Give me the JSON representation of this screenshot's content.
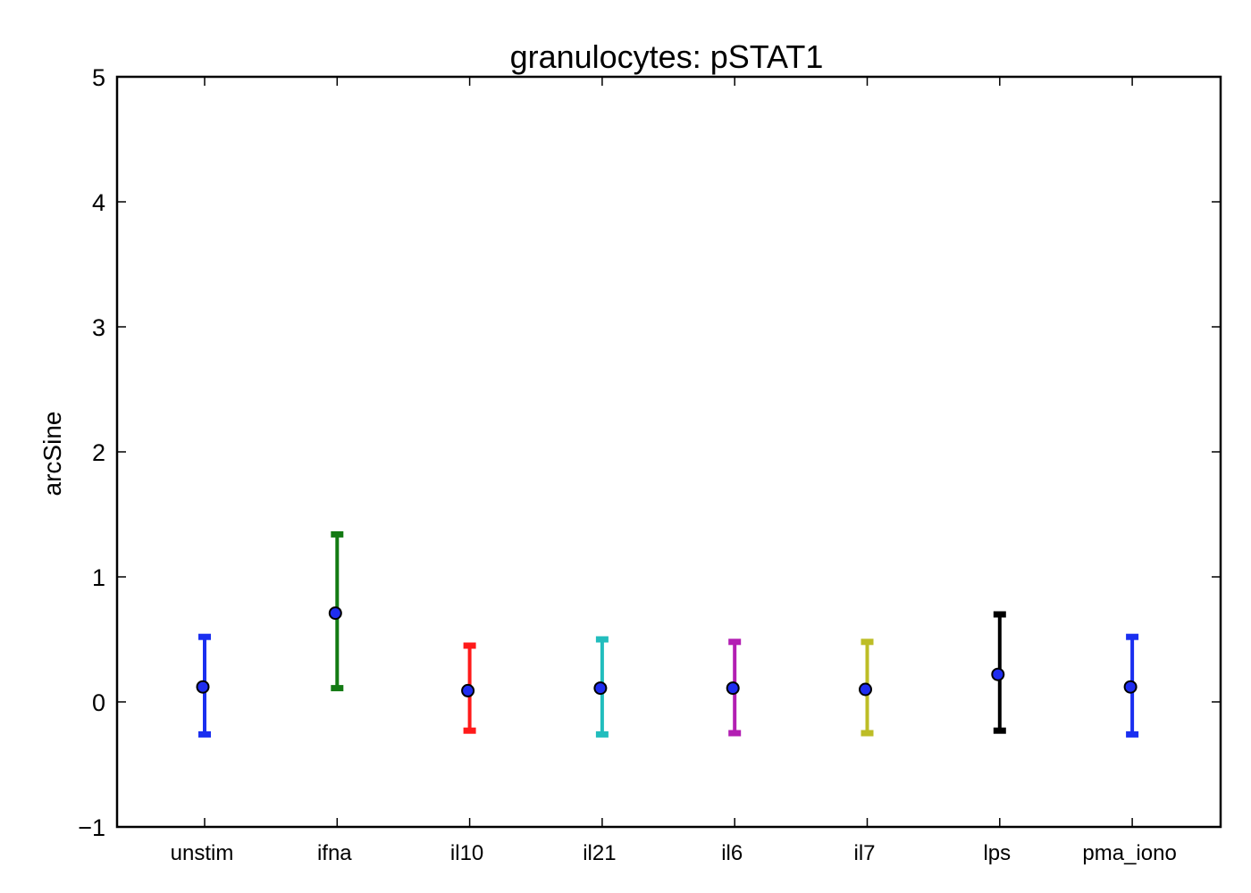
{
  "chart_data": {
    "type": "errorbar",
    "title": "granulocytes: pSTAT1",
    "xlabel": "",
    "ylabel": "arcSine",
    "ylim": [
      -1,
      5
    ],
    "yticks": [
      -1,
      0,
      1,
      2,
      3,
      4,
      5
    ],
    "ytick_labels": [
      "−1",
      "0",
      "1",
      "2",
      "3",
      "4",
      "5"
    ],
    "grid": false,
    "categories": [
      "unstim",
      "ifna",
      "il10",
      "il21",
      "il6",
      "il7",
      "lps",
      "pma_iono"
    ],
    "points": [
      {
        "label": "unstim",
        "value": 0.12,
        "lower": -0.26,
        "upper": 0.52,
        "color": "#1a2ff0"
      },
      {
        "label": "ifna",
        "value": 0.71,
        "lower": 0.11,
        "upper": 1.34,
        "color": "#137a13"
      },
      {
        "label": "il10",
        "value": 0.09,
        "lower": -0.23,
        "upper": 0.45,
        "color": "#ff1a1a"
      },
      {
        "label": "il21",
        "value": 0.11,
        "lower": -0.26,
        "upper": 0.5,
        "color": "#22bdbd"
      },
      {
        "label": "il6",
        "value": 0.11,
        "lower": -0.25,
        "upper": 0.48,
        "color": "#b31fb3"
      },
      {
        "label": "il7",
        "value": 0.1,
        "lower": -0.25,
        "upper": 0.48,
        "color": "#bdbd26"
      },
      {
        "label": "lps",
        "value": 0.22,
        "lower": -0.23,
        "upper": 0.7,
        "color": "#000000"
      },
      {
        "label": "pma_iono",
        "value": 0.12,
        "lower": -0.26,
        "upper": 0.52,
        "color": "#1a2ff0"
      }
    ],
    "marker": {
      "fill": "#1f2df0",
      "edge": "#000000"
    }
  }
}
